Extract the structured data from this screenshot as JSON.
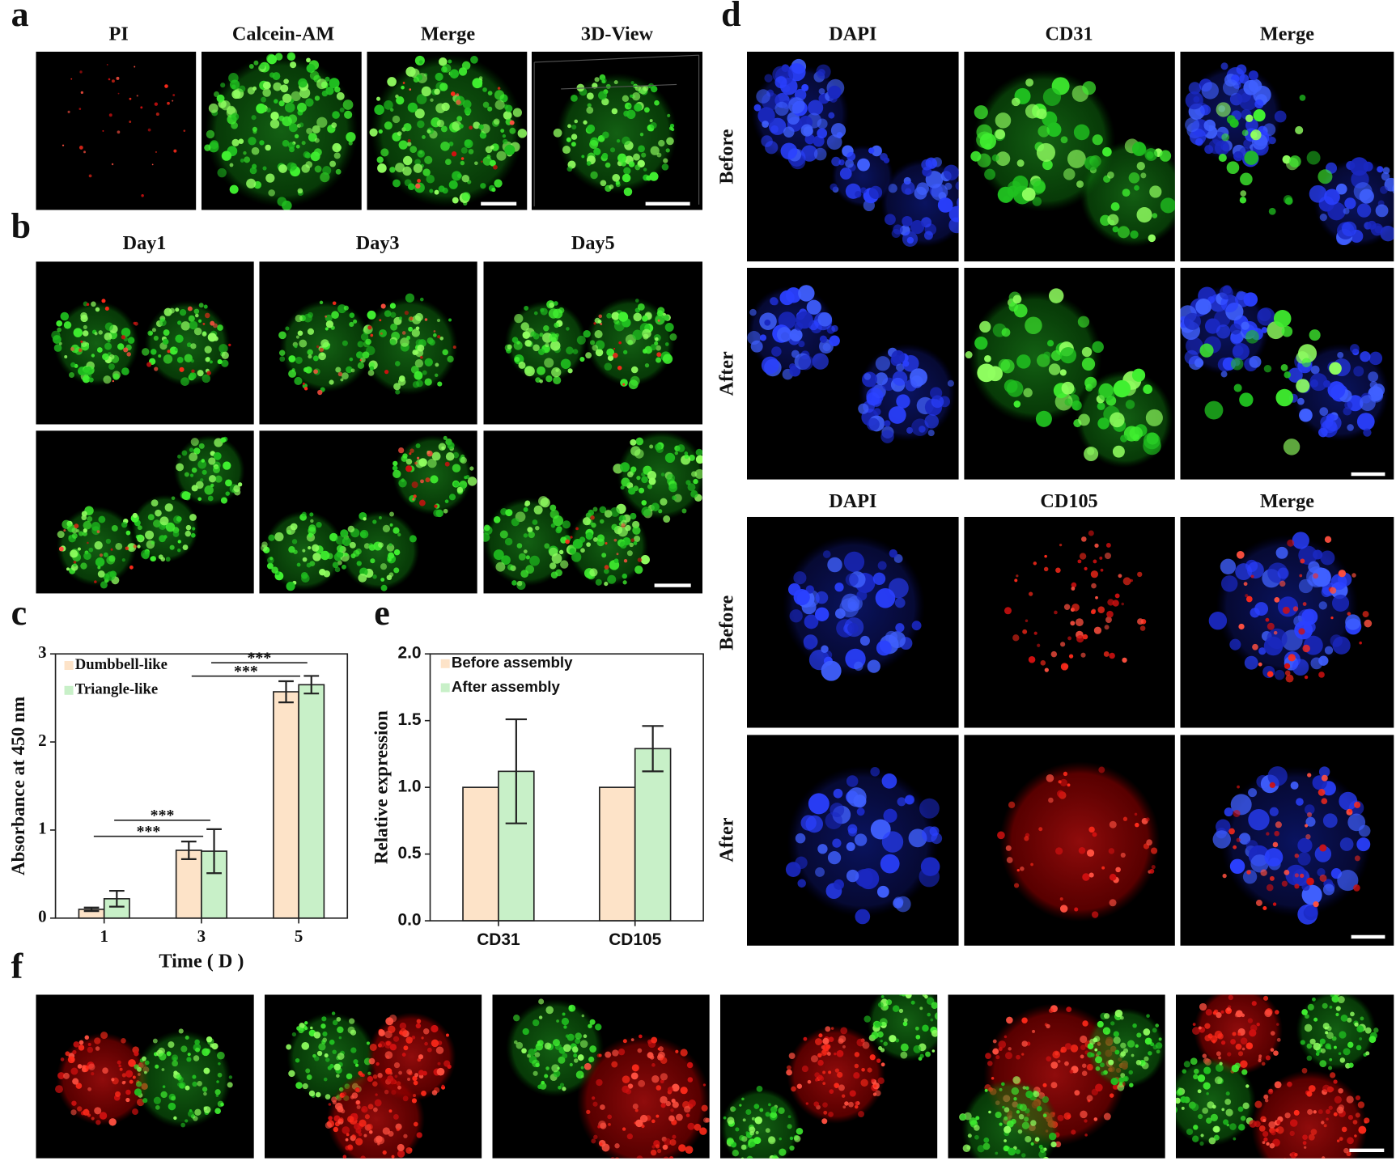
{
  "panels": {
    "a": {
      "letter": "a",
      "titles": [
        "PI",
        "Calcein-AM",
        "Merge",
        "3D-View"
      ]
    },
    "b": {
      "letter": "b",
      "titles": [
        "Day1",
        "Day3",
        "Day5"
      ]
    },
    "c": {
      "letter": "c"
    },
    "d": {
      "letter": "d",
      "top": {
        "titles": [
          "DAPI",
          "CD31",
          "Merge"
        ],
        "rows": [
          "Before",
          "After"
        ]
      },
      "bottom": {
        "titles": [
          "DAPI",
          "CD105",
          "Merge"
        ],
        "rows": [
          "Before",
          "After"
        ]
      }
    },
    "e": {
      "letter": "e"
    },
    "f": {
      "letter": "f"
    }
  },
  "chart_data": [
    {
      "type": "bar",
      "x_label": "Time ( D )",
      "y_label": "Absorbance at 450 nm",
      "categories": [
        "1",
        "3",
        "5"
      ],
      "series": [
        {
          "name": "Dumbbell-like",
          "color": "#fde3c8",
          "values": [
            0.1,
            0.77,
            2.57
          ],
          "errors": [
            0.02,
            0.1,
            0.12
          ]
        },
        {
          "name": "Triangle-like",
          "color": "#c8f0c8",
          "values": [
            0.22,
            0.76,
            2.65
          ],
          "errors": [
            0.09,
            0.25,
            0.1
          ]
        }
      ],
      "ylim": [
        0,
        3
      ],
      "yticks": [
        0,
        1,
        2,
        3
      ],
      "legend": "upper left",
      "annotations": [
        "***",
        "***",
        "***",
        "***"
      ]
    },
    {
      "type": "bar",
      "y_label": "Relative expression",
      "categories": [
        "CD31",
        "CD105"
      ],
      "series": [
        {
          "name": "Before assembly",
          "color": "#fde3c8",
          "values": [
            1.0,
            1.0
          ]
        },
        {
          "name": "After assembly",
          "color": "#c8f0c8",
          "values": [
            1.12,
            1.29
          ],
          "errors": [
            0.39,
            0.17
          ]
        }
      ],
      "ylim": [
        0,
        2
      ],
      "yticks": [
        {
          "value": 0,
          "label": "0.0"
        },
        {
          "value": 0.5,
          "label": "0.5"
        },
        {
          "value": 1,
          "label": "1.0"
        },
        {
          "value": 1.5,
          "label": "1.5"
        },
        {
          "value": 2,
          "label": "2.0"
        }
      ],
      "legend": "upper left"
    }
  ]
}
